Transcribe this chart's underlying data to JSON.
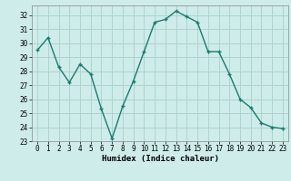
{
  "x": [
    0,
    1,
    2,
    3,
    4,
    5,
    6,
    7,
    8,
    9,
    10,
    11,
    12,
    13,
    14,
    15,
    16,
    17,
    18,
    19,
    20,
    21,
    22,
    23
  ],
  "y": [
    29.5,
    30.4,
    28.3,
    27.2,
    28.5,
    27.8,
    25.3,
    23.2,
    25.5,
    27.3,
    29.4,
    31.5,
    31.7,
    32.3,
    31.9,
    31.5,
    29.4,
    29.4,
    27.8,
    26.0,
    25.4,
    24.3,
    24.0,
    23.9
  ],
  "line_color": "#1c7a6e",
  "marker": "+",
  "bg_color": "#ceecea",
  "grid_color": "#aed4cf",
  "xlabel": "Humidex (Indice chaleur)",
  "ylim": [
    23,
    32.7
  ],
  "xlim": [
    -0.5,
    23.5
  ],
  "yticks": [
    23,
    24,
    25,
    26,
    27,
    28,
    29,
    30,
    31,
    32
  ],
  "xtick_labels": [
    "0",
    "1",
    "2",
    "3",
    "4",
    "5",
    "6",
    "7",
    "8",
    "9",
    "1011",
    "12",
    "13",
    "14",
    "15",
    "16",
    "17",
    "18",
    "1920",
    "21",
    "2223"
  ],
  "axis_label_fontsize": 6.5,
  "tick_fontsize": 5.5,
  "marker_size": 3.5,
  "linewidth": 1.0
}
